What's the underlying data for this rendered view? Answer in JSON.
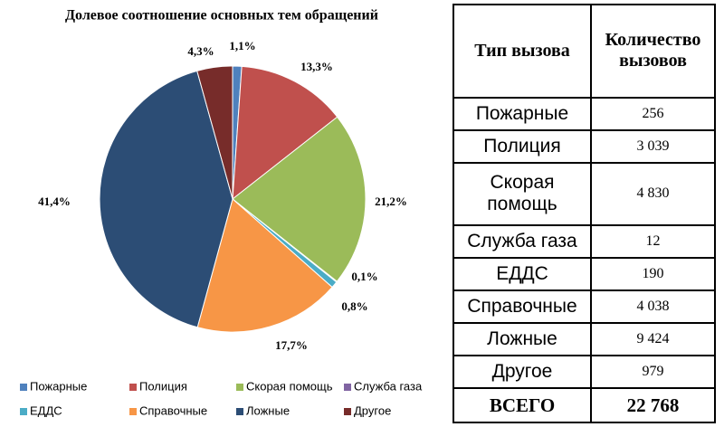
{
  "chart_data": {
    "type": "pie",
    "title": "Долевое соотношение основных тем обращений",
    "categories": [
      "Пожарные",
      "Полиция",
      "Скорая помощь",
      "Служба газа",
      "ЕДДС",
      "Справочные",
      "Ложные",
      "Другое"
    ],
    "values": [
      1.1,
      13.3,
      21.2,
      0.1,
      0.8,
      17.7,
      41.4,
      4.3
    ],
    "value_labels": [
      "1,1%",
      "13,3%",
      "21,2%",
      "0,1%",
      "0,8%",
      "17,7%",
      "41,4%",
      "4,3%"
    ],
    "colors": [
      "#4f81bd",
      "#c0504d",
      "#9bbb59",
      "#8064a2",
      "#4bacc6",
      "#f79646",
      "#2c4d75",
      "#772c2a"
    ]
  },
  "table": {
    "header": [
      "Тип вызова",
      "Количество вызовов"
    ],
    "rows": [
      [
        "Пожарные",
        "256"
      ],
      [
        "Полиция",
        "3 039"
      ],
      [
        "Скорая помощь",
        "4 830"
      ],
      [
        "Служба газа",
        "12"
      ],
      [
        "ЕДДС",
        "190"
      ],
      [
        "Справочные",
        "4 038"
      ],
      [
        "Ложные",
        "9 424"
      ],
      [
        "Другое",
        "979"
      ],
      [
        "ВСЕГО",
        "22 768"
      ]
    ]
  }
}
